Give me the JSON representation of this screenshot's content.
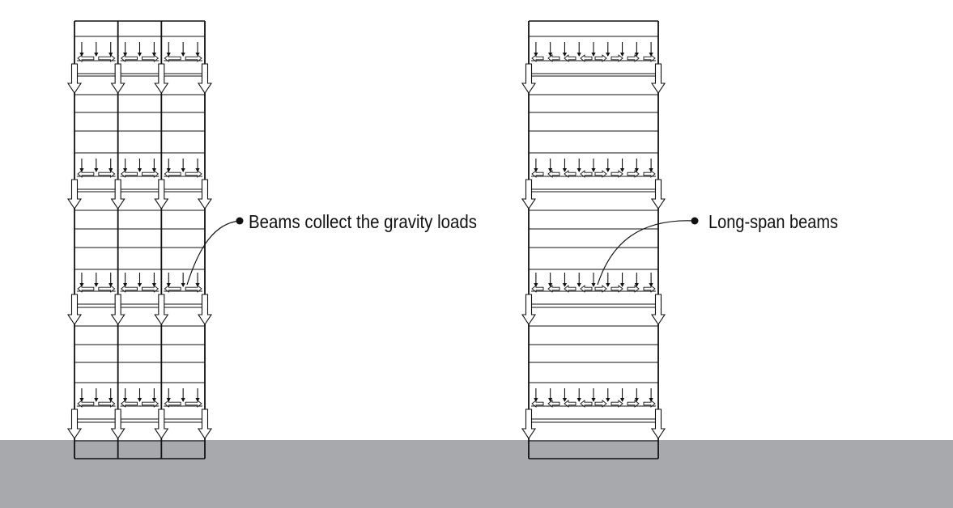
{
  "colors": {
    "ground": "#a7a9ac",
    "line": "#111111",
    "background": "#ffffff"
  },
  "left_frame": {
    "bays": 3,
    "callout": {
      "label": "Beams collect the gravity loads"
    }
  },
  "right_frame": {
    "bays": 1,
    "callout": {
      "label": "Long-span beams"
    }
  },
  "ground": {
    "description_icon": "ground-band"
  }
}
